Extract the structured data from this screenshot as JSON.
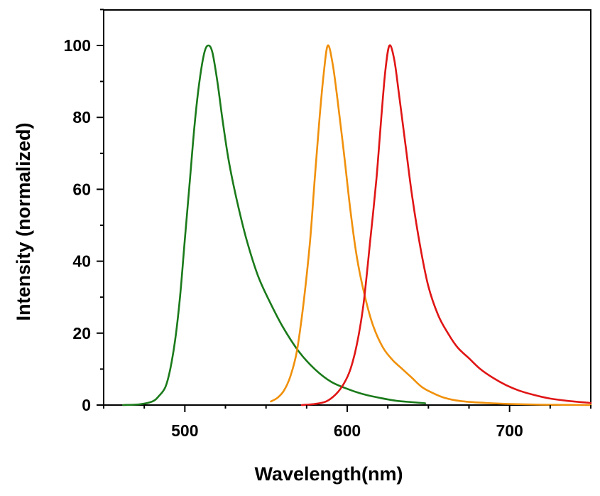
{
  "chart_data": {
    "type": "line",
    "title": "",
    "xlabel": "Wavelength(nm)",
    "ylabel": "Intensity (normalized)",
    "xlim": [
      450,
      750
    ],
    "ylim": [
      0,
      110
    ],
    "xticks": [
      500,
      600,
      700
    ],
    "xtick_labels": [
      "500",
      "600",
      "700"
    ],
    "yticks": [
      0,
      20,
      40,
      60,
      80,
      100
    ],
    "ytick_labels": [
      "0",
      "20",
      "40",
      "60",
      "80",
      "100"
    ],
    "grid": false,
    "legend": "none",
    "series": [
      {
        "name": "green",
        "color": "#1a7a1a",
        "points": [
          [
            462,
            0
          ],
          [
            472,
            0.2
          ],
          [
            480,
            1
          ],
          [
            484,
            2.5
          ],
          [
            488,
            5
          ],
          [
            491,
            10
          ],
          [
            494,
            18
          ],
          [
            497,
            30
          ],
          [
            500,
            46
          ],
          [
            503,
            62
          ],
          [
            506,
            78
          ],
          [
            509,
            90
          ],
          [
            512,
            98
          ],
          [
            514.5,
            100
          ],
          [
            517,
            98
          ],
          [
            520,
            90
          ],
          [
            523,
            80
          ],
          [
            527,
            68
          ],
          [
            532,
            57
          ],
          [
            538,
            46
          ],
          [
            545,
            36
          ],
          [
            552,
            29
          ],
          [
            560,
            22
          ],
          [
            570,
            15
          ],
          [
            580,
            10
          ],
          [
            590,
            6.5
          ],
          [
            600,
            4.5
          ],
          [
            610,
            3
          ],
          [
            620,
            2
          ],
          [
            630,
            1.2
          ],
          [
            640,
            0.8
          ],
          [
            648,
            0.5
          ]
        ]
      },
      {
        "name": "orange",
        "color": "#f0900a",
        "points": [
          [
            553,
            1
          ],
          [
            557,
            2
          ],
          [
            561,
            4
          ],
          [
            565,
            8
          ],
          [
            569,
            15
          ],
          [
            573,
            28
          ],
          [
            577,
            45
          ],
          [
            580,
            63
          ],
          [
            583,
            80
          ],
          [
            585.5,
            92
          ],
          [
            588,
            100
          ],
          [
            591,
            95
          ],
          [
            594,
            85
          ],
          [
            598,
            70
          ],
          [
            602,
            54
          ],
          [
            606,
            41
          ],
          [
            611,
            30
          ],
          [
            616,
            22
          ],
          [
            622,
            16
          ],
          [
            628,
            12.5
          ],
          [
            634,
            10
          ],
          [
            640,
            7.5
          ],
          [
            646,
            5
          ],
          [
            652,
            3.5
          ],
          [
            660,
            2
          ],
          [
            670,
            1.1
          ],
          [
            685,
            0.6
          ],
          [
            700,
            0.3
          ],
          [
            720,
            0.1
          ],
          [
            750,
            0
          ]
        ]
      },
      {
        "name": "red",
        "color": "#e01515",
        "points": [
          [
            572,
            0
          ],
          [
            580,
            0.3
          ],
          [
            587,
            1
          ],
          [
            593,
            3
          ],
          [
            598,
            6
          ],
          [
            602,
            10
          ],
          [
            606,
            17
          ],
          [
            610,
            28
          ],
          [
            614,
            45
          ],
          [
            618,
            63
          ],
          [
            621,
            80
          ],
          [
            623.5,
            93
          ],
          [
            626,
            100
          ],
          [
            629,
            96
          ],
          [
            632,
            86
          ],
          [
            636,
            72
          ],
          [
            640,
            58
          ],
          [
            645,
            44
          ],
          [
            650,
            33
          ],
          [
            656,
            25
          ],
          [
            662,
            20
          ],
          [
            668,
            16
          ],
          [
            675,
            13
          ],
          [
            682,
            10
          ],
          [
            690,
            7.5
          ],
          [
            698,
            5.5
          ],
          [
            706,
            4
          ],
          [
            715,
            2.8
          ],
          [
            725,
            1.8
          ],
          [
            735,
            1.2
          ],
          [
            750,
            0.6
          ]
        ]
      }
    ]
  }
}
